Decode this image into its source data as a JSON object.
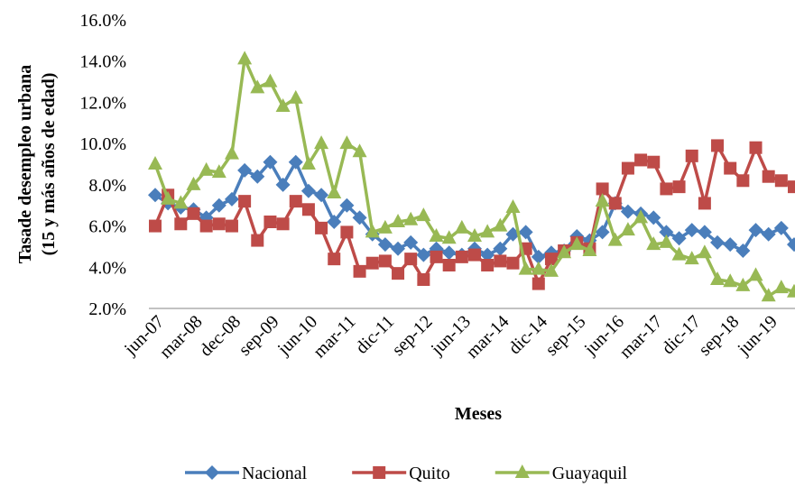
{
  "chart_data": {
    "type": "line",
    "x_label": "Meses",
    "y_label": [
      "Tasade desempleo urbana",
      "(15 y más años de edad)"
    ],
    "categories": [
      "jun-07",
      null,
      null,
      "mar-08",
      null,
      null,
      "dec-08",
      null,
      null,
      "sep-09",
      null,
      null,
      "jun-10",
      null,
      null,
      "mar-11",
      null,
      null,
      "dic-11",
      null,
      null,
      "sep-12",
      null,
      null,
      "jun-13",
      null,
      null,
      "mar-14",
      null,
      null,
      "dic-14",
      null,
      null,
      "sep-15",
      null,
      null,
      "jun-16",
      null,
      null,
      "mar-17",
      null,
      null,
      "dic-17",
      null,
      null,
      "sep-18",
      null,
      null,
      "jun-19",
      null,
      null
    ],
    "series": [
      {
        "name": "Nacional",
        "color": "#4a7ebb",
        "marker": "diamond",
        "values": [
          7.5,
          7.1,
          6.9,
          6.8,
          6.4,
          7.0,
          7.3,
          8.7,
          8.4,
          9.1,
          8.0,
          9.1,
          7.7,
          7.5,
          6.2,
          7.0,
          6.4,
          5.6,
          5.1,
          4.9,
          5.2,
          4.6,
          4.9,
          4.7,
          4.6,
          4.9,
          4.6,
          4.9,
          5.6,
          5.7,
          4.5,
          4.7,
          4.8,
          5.5,
          5.3,
          5.7,
          7.1,
          6.7,
          6.6,
          6.4,
          5.7,
          5.4,
          5.8,
          5.7,
          5.2,
          5.1,
          4.8,
          5.8,
          5.6,
          5.9,
          5.1
        ]
      },
      {
        "name": "Quito",
        "color": "#be4b48",
        "marker": "square",
        "values": [
          6.0,
          7.5,
          6.1,
          6.6,
          6.0,
          6.1,
          6.0,
          7.2,
          5.3,
          6.2,
          6.1,
          7.2,
          6.8,
          5.9,
          4.4,
          5.7,
          3.8,
          4.2,
          4.3,
          3.7,
          4.4,
          3.4,
          4.5,
          4.1,
          4.5,
          4.6,
          4.1,
          4.3,
          4.2,
          4.9,
          3.2,
          4.4,
          4.8,
          5.2,
          4.9,
          7.8,
          7.1,
          8.8,
          9.2,
          9.1,
          7.8,
          7.9,
          9.4,
          7.1,
          9.9,
          8.8,
          8.2,
          9.8,
          8.4,
          8.2,
          7.9
        ]
      },
      {
        "name": "Guayaquil",
        "color": "#98b954",
        "marker": "triangle",
        "values": [
          9.0,
          7.3,
          7.1,
          8.0,
          8.7,
          8.6,
          9.5,
          14.1,
          12.7,
          13.0,
          11.8,
          12.2,
          9.0,
          10.0,
          7.6,
          10.0,
          9.6,
          5.7,
          5.9,
          6.2,
          6.3,
          6.5,
          5.5,
          5.4,
          5.9,
          5.5,
          5.7,
          6.0,
          6.9,
          3.9,
          3.9,
          3.8,
          4.7,
          5.1,
          4.8,
          7.2,
          5.3,
          5.8,
          6.4,
          5.1,
          5.2,
          4.6,
          4.4,
          4.7,
          3.4,
          3.3,
          3.1,
          3.6,
          2.6,
          3.0,
          2.8
        ]
      }
    ],
    "ylim": [
      2,
      16
    ],
    "yticks": [
      {
        "value": 2,
        "label": "2.0%"
      },
      {
        "value": 4,
        "label": "4.0%"
      },
      {
        "value": 6,
        "label": "6.0%"
      },
      {
        "value": 8,
        "label": "8.0%"
      },
      {
        "value": 10,
        "label": "10.0%"
      },
      {
        "value": 12,
        "label": "12.0%"
      },
      {
        "value": 14,
        "label": "14.0%"
      },
      {
        "value": 16,
        "label": "16.0%"
      }
    ],
    "grid": false,
    "legend": "bottom"
  }
}
